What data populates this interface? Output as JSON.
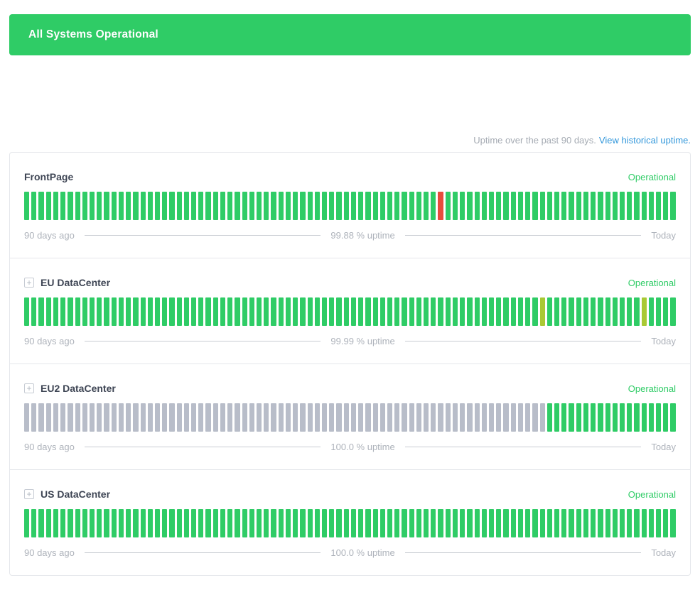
{
  "banner": {
    "label": "All Systems Operational"
  },
  "uptime_header": {
    "text": "Uptime over the past 90 days.",
    "link_label": "View historical uptime."
  },
  "icons": {
    "expand_glyph": "+"
  },
  "legend": {
    "start": "90 days ago",
    "end": "Today"
  },
  "colors": {
    "operational_green": "#2fcc66",
    "outage_red": "#e74c3c",
    "degraded_yellow": "#a9c934",
    "nodata_gray": "#b8bdc9",
    "link_blue": "#3498db"
  },
  "services": [
    {
      "name": "FrontPage",
      "expandable": false,
      "status": "Operational",
      "uptime_label": "99.88 % uptime",
      "bar_segments": [
        {
          "color": "operational_green",
          "count": 57
        },
        {
          "color": "outage_red",
          "count": 1
        },
        {
          "color": "operational_green",
          "count": 32
        }
      ]
    },
    {
      "name": "EU DataCenter",
      "expandable": true,
      "status": "Operational",
      "uptime_label": "99.99 % uptime",
      "bar_segments": [
        {
          "color": "operational_green",
          "count": 71
        },
        {
          "color": "degraded_yellow",
          "count": 1
        },
        {
          "color": "operational_green",
          "count": 13
        },
        {
          "color": "degraded_yellow",
          "count": 1
        },
        {
          "color": "operational_green",
          "count": 4
        }
      ]
    },
    {
      "name": "EU2 DataCenter",
      "expandable": true,
      "status": "Operational",
      "uptime_label": "100.0 % uptime",
      "bar_segments": [
        {
          "color": "nodata_gray",
          "count": 72
        },
        {
          "color": "operational_green",
          "count": 18
        }
      ]
    },
    {
      "name": "US DataCenter",
      "expandable": true,
      "status": "Operational",
      "uptime_label": "100.0 % uptime",
      "bar_segments": [
        {
          "color": "operational_green",
          "count": 90
        }
      ]
    }
  ]
}
